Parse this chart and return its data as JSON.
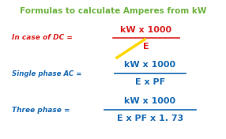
{
  "title": "Formulas to calculate Amperes from kW",
  "title_color": "#6db33f",
  "title_fontsize": 7.5,
  "bg_color": "#ffffff",
  "dc_label": "In case of DC =",
  "dc_label_color": "#dd2222",
  "dc_numerator": "kW x 1000",
  "dc_denominator": "E",
  "dc_formula_color": "#dd2222",
  "single_label": "Single phase AC =",
  "single_label_color": "#1a6bb5",
  "single_numerator": "kW x 1000",
  "single_denominator": "E x PF",
  "single_formula_color": "#1a6bb5",
  "three_label": "Three phase =",
  "three_label_color": "#1a6bb5",
  "three_numerator": "kW x 1000",
  "three_denominator": "E x PF x 1. 73",
  "three_formula_color": "#1a6bb5",
  "arrow_color": "#FFD700",
  "label_fontsize": 6.5,
  "formula_fontsize": 8.0
}
